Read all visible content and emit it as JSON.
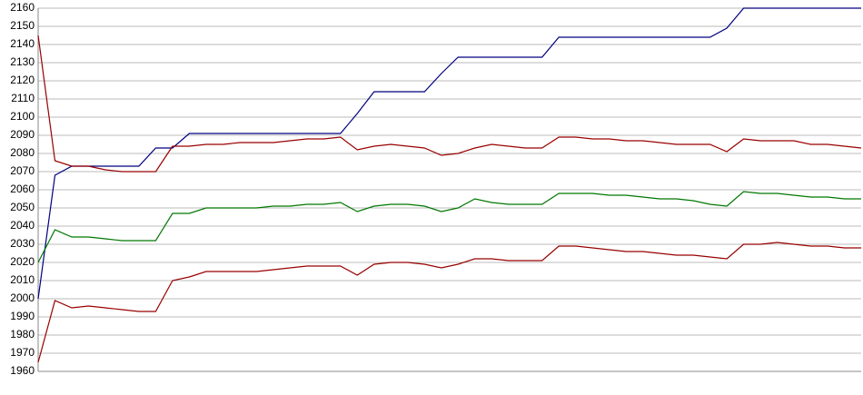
{
  "chart_data": {
    "type": "line",
    "ylim": [
      1960,
      2160
    ],
    "yticks": [
      1960,
      1970,
      1980,
      1990,
      2000,
      2010,
      2020,
      2030,
      2040,
      2050,
      2060,
      2070,
      2080,
      2090,
      2100,
      2110,
      2120,
      2130,
      2140,
      2150,
      2160
    ],
    "grid": true,
    "series": [
      {
        "color": "#000080",
        "values": [
          2000,
          2068,
          2073,
          2073,
          2073,
          2073,
          2073,
          2083,
          2083,
          2091,
          2091,
          2091,
          2091,
          2091,
          2091,
          2091,
          2091,
          2091,
          2091,
          2102,
          2114,
          2114,
          2114,
          2114,
          2124,
          2133,
          2133,
          2133,
          2133,
          2133,
          2133,
          2144,
          2144,
          2144,
          2144,
          2144,
          2144,
          2144,
          2144,
          2144,
          2144,
          2149,
          2160,
          2160,
          2160,
          2160,
          2160,
          2160,
          2160,
          2160
        ]
      },
      {
        "color": "#990000",
        "values": [
          2145,
          2076,
          2073,
          2073,
          2071,
          2070,
          2070,
          2070,
          2084,
          2084,
          2085,
          2085,
          2086,
          2086,
          2086,
          2087,
          2088,
          2088,
          2089,
          2082,
          2084,
          2085,
          2084,
          2083,
          2079,
          2080,
          2083,
          2085,
          2084,
          2083,
          2083,
          2089,
          2089,
          2088,
          2088,
          2087,
          2087,
          2086,
          2085,
          2085,
          2085,
          2081,
          2088,
          2087,
          2087,
          2087,
          2085,
          2085,
          2084,
          2083
        ]
      },
      {
        "color": "#007700",
        "values": [
          2020,
          2038,
          2034,
          2034,
          2033,
          2032,
          2032,
          2032,
          2047,
          2047,
          2050,
          2050,
          2050,
          2050,
          2051,
          2051,
          2052,
          2052,
          2053,
          2048,
          2051,
          2052,
          2052,
          2051,
          2048,
          2050,
          2055,
          2053,
          2052,
          2052,
          2052,
          2058,
          2058,
          2058,
          2057,
          2057,
          2056,
          2055,
          2055,
          2054,
          2052,
          2051,
          2059,
          2058,
          2058,
          2057,
          2056,
          2056,
          2055,
          2055
        ]
      },
      {
        "color": "#990000",
        "values": [
          1965,
          1999,
          1995,
          1996,
          1995,
          1994,
          1993,
          1993,
          2010,
          2012,
          2015,
          2015,
          2015,
          2015,
          2016,
          2017,
          2018,
          2018,
          2018,
          2013,
          2019,
          2020,
          2020,
          2019,
          2017,
          2019,
          2022,
          2022,
          2021,
          2021,
          2021,
          2029,
          2029,
          2028,
          2027,
          2026,
          2026,
          2025,
          2024,
          2024,
          2023,
          2022,
          2030,
          2030,
          2031,
          2030,
          2029,
          2029,
          2028,
          2028
        ]
      }
    ]
  }
}
